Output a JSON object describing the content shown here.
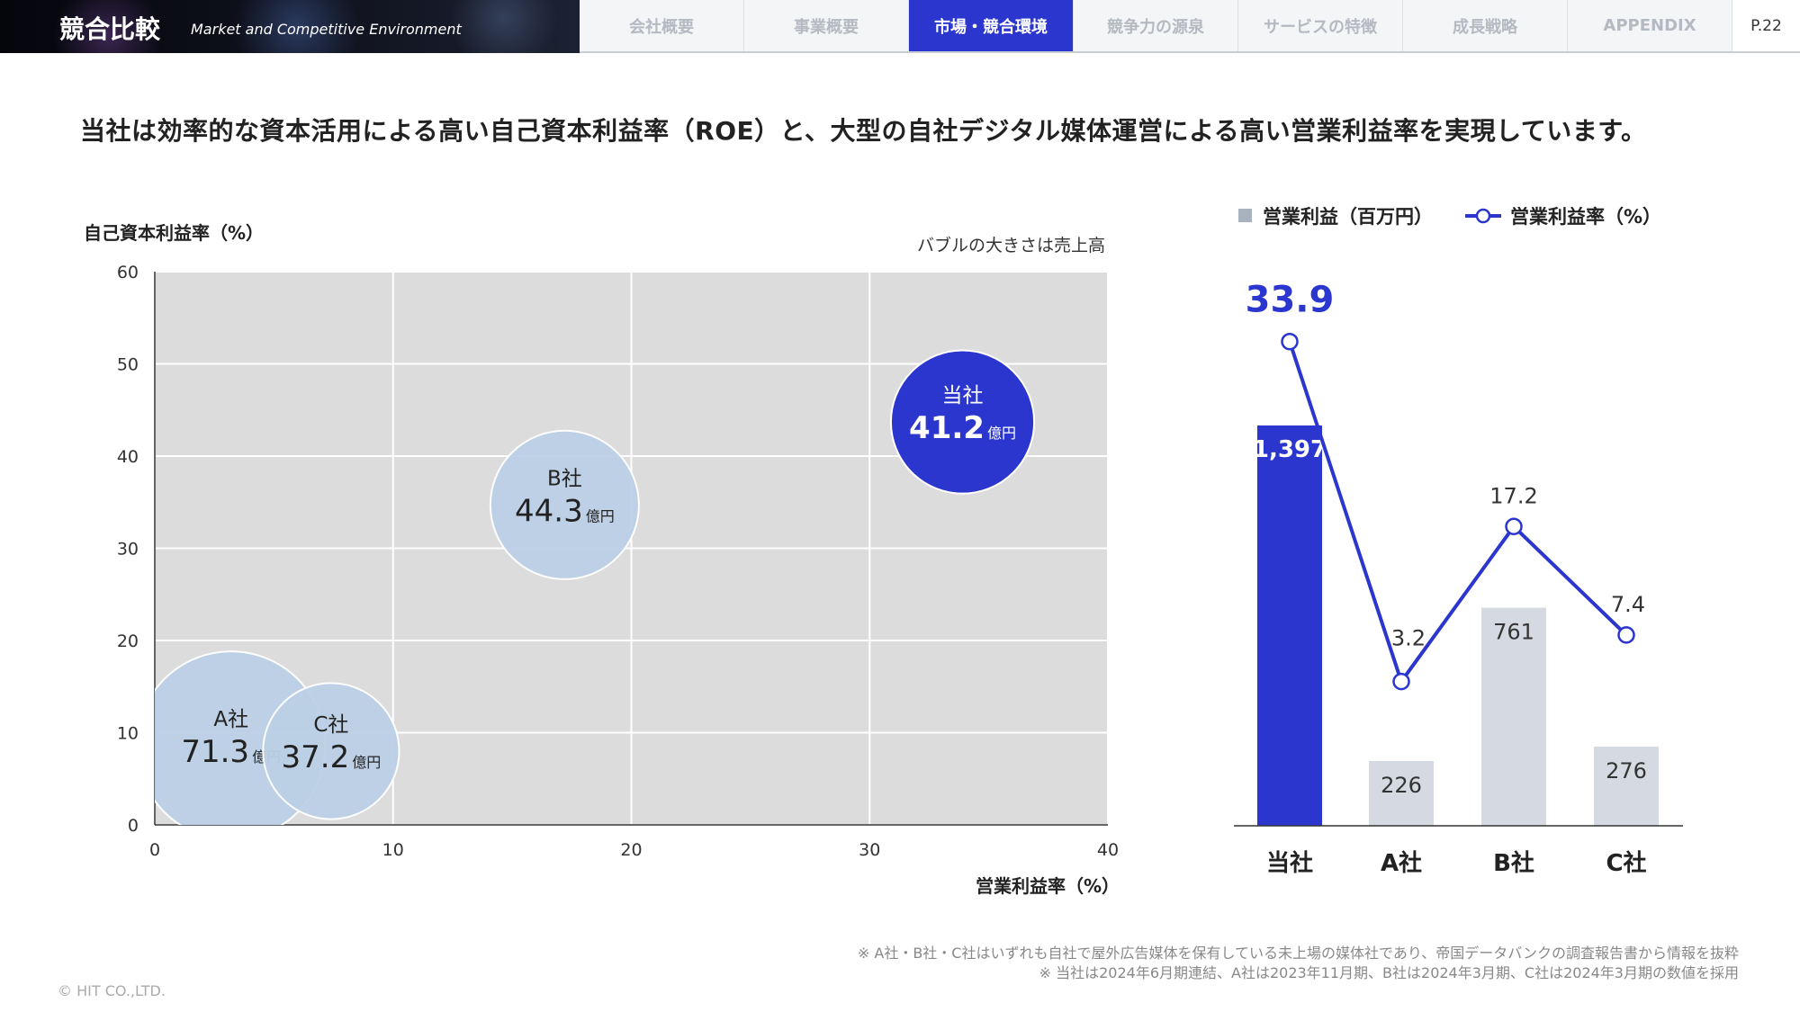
{
  "header": {
    "title": "競合比較",
    "subtitle": "Market and Competitive Environment",
    "tabs": [
      {
        "label": "会社概要",
        "active": false
      },
      {
        "label": "事業概要",
        "active": false
      },
      {
        "label": "市場・競合環境",
        "active": true
      },
      {
        "label": "競争力の源泉",
        "active": false
      },
      {
        "label": "サービスの特徴",
        "active": false
      },
      {
        "label": "成長戦略",
        "active": false
      },
      {
        "label": "APPENDIX",
        "active": false
      }
    ],
    "page": "P.22"
  },
  "headline": "当社は効率的な資本活用による高い自己資本利益率（ROE）と、大型の自社デジタル媒体運営による高い営業利益率を実現しています。",
  "colors": {
    "accent": "#2b36cf",
    "bubble_other": "#bcd0e6",
    "bar_other": "#d4d9e2",
    "plot_bg": "#dcdcdc"
  },
  "chart_data": [
    {
      "type": "scatter",
      "subtype": "bubble",
      "ylabel": "自己資本利益率（%）",
      "xlabel": "営業利益率（%）",
      "note": "バブルの大きさは売上高",
      "xlim": [
        0,
        40
      ],
      "ylim": [
        0,
        60
      ],
      "xticks": [
        "0",
        "10",
        "20",
        "30",
        "40"
      ],
      "yticks": [
        "0",
        "10",
        "20",
        "30",
        "40",
        "50",
        "60"
      ],
      "grid": true,
      "points": [
        {
          "name": "当社",
          "x": 33.9,
          "y": 43.7,
          "size": "41.2",
          "unit": "億円",
          "highlight": true
        },
        {
          "name": "B社",
          "x": 17.2,
          "y": 34.7,
          "size": "44.3",
          "unit": "億円",
          "highlight": false
        },
        {
          "name": "A社",
          "x": 3.2,
          "y": 8.6,
          "size": "71.3",
          "unit": "億円",
          "highlight": false
        },
        {
          "name": "C社",
          "x": 7.4,
          "y": 8.0,
          "size": "37.2",
          "unit": "億円",
          "highlight": false
        }
      ]
    },
    {
      "type": "bar+line",
      "categories": [
        "当社",
        "A社",
        "B社",
        "C社"
      ],
      "series": [
        {
          "name": "営業利益（百万円）",
          "type": "bar",
          "values": [
            1397,
            226,
            761,
            276
          ],
          "labels": [
            "1,397",
            "226",
            "761",
            "276"
          ]
        },
        {
          "name": "営業利益率（%）",
          "type": "line",
          "values": [
            33.9,
            3.2,
            17.2,
            7.4
          ],
          "labels": [
            "33.9",
            "3.2",
            "17.2",
            "7.4"
          ]
        }
      ],
      "legend": "top"
    }
  ],
  "footnotes": [
    "※ A社・B社・C社はいずれも自社で屋外広告媒体を保有している未上場の媒体社であり、帝国データバンクの調査報告書から情報を抜粋",
    "※ 当社は2024年6月期連結、A社は2023年11月期、B社は2024年3月期、C社は2024年3月期の数値を採用"
  ],
  "copyright": "© HIT CO.,LTD."
}
